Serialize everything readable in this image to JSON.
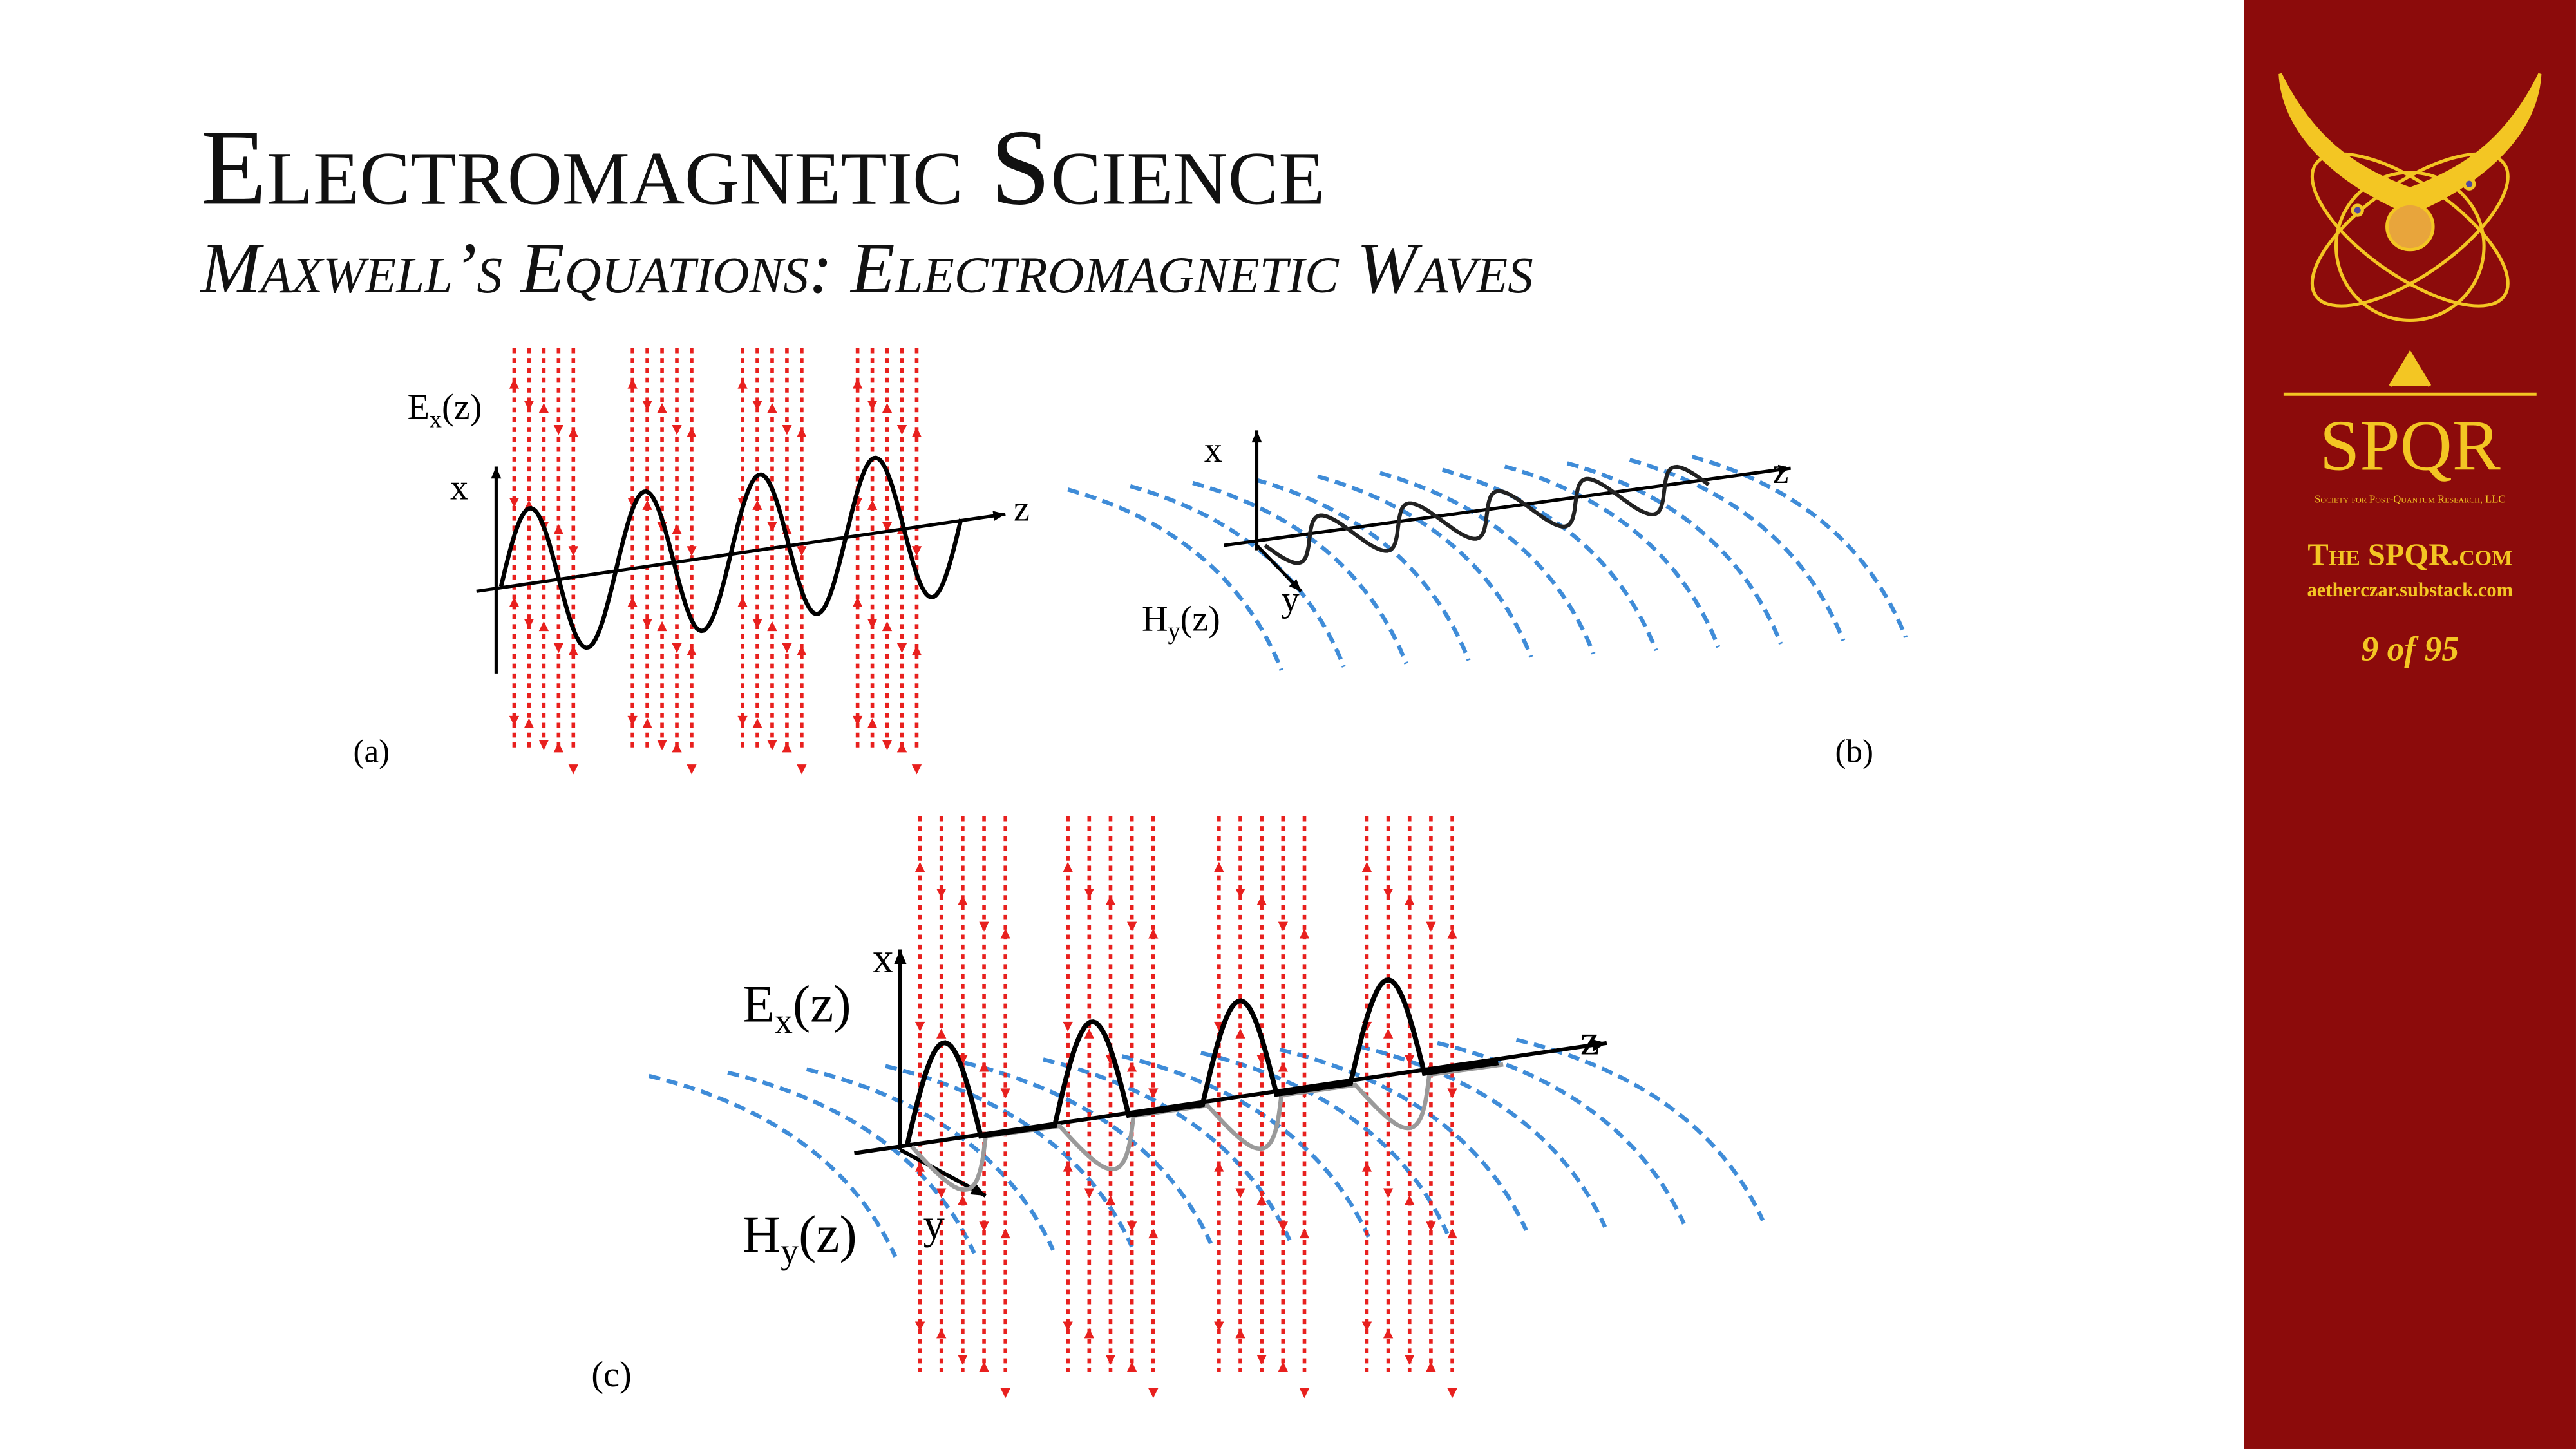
{
  "header": {
    "title": "Electromagnetic Science",
    "subtitle": "Maxwell’s Equations: Electromagnetic Waves"
  },
  "figures": [
    {
      "label": "(a)",
      "field": {
        "main": "E",
        "sub": "x",
        "rest": "(z)"
      },
      "axes": {
        "x": "x",
        "z": "z"
      }
    },
    {
      "label": "(b)",
      "field": {
        "main": "H",
        "sub": "y",
        "rest": "(z)"
      },
      "axes": {
        "x": "x",
        "z": "z",
        "y": "y"
      }
    },
    {
      "label": "(c)",
      "fields": [
        {
          "main": "E",
          "sub": "x",
          "rest": "(z)"
        },
        {
          "main": "H",
          "sub": "y",
          "rest": "(z)"
        }
      ],
      "axes": {
        "x": "x",
        "z": "z",
        "y": "y"
      }
    }
  ],
  "sidebar": {
    "logo_text": "SPQR",
    "organization": "Society for Post-Quantum Research, LLC",
    "site": "The SPQR.com",
    "substack": "aetherczar.substack.com",
    "page": "9 of 95"
  }
}
